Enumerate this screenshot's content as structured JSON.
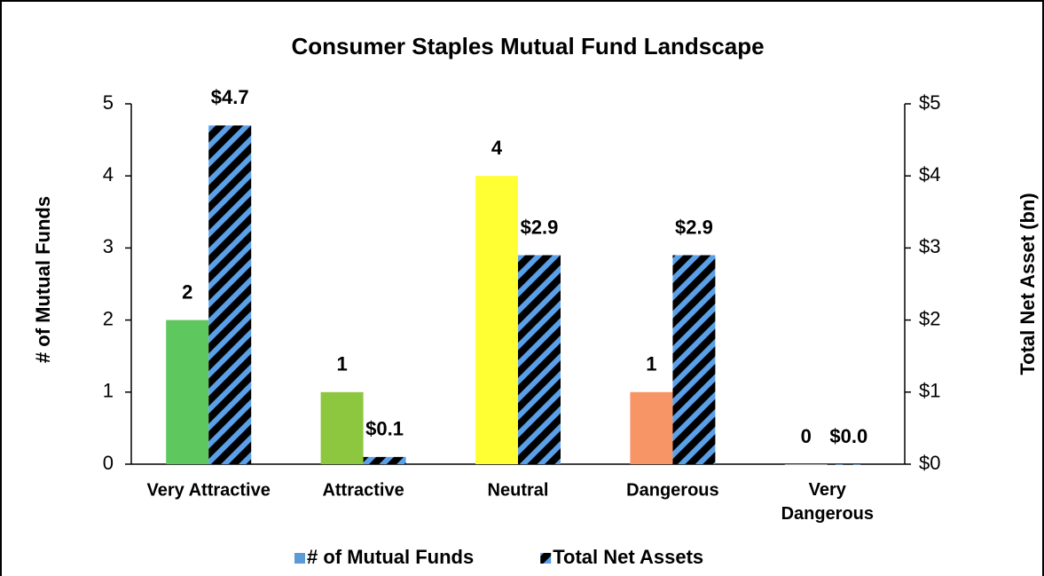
{
  "chart_data": {
    "type": "bar",
    "title": "Consumer Staples Mutual Fund Landscape",
    "categories": [
      "Very Attractive",
      "Attractive",
      "Neutral",
      "Dangerous",
      "Very Dangerous"
    ],
    "series": [
      {
        "name": "# of Mutual Funds",
        "color": "#5b9bd5",
        "colors": [
          "#5ec85e",
          "#8dc63f",
          "#ffff33",
          "#f79566",
          "#d9d9d9"
        ],
        "values": [
          2,
          1,
          4,
          1,
          0
        ]
      },
      {
        "name": "Total Net Assets",
        "color": "#5aa0e8",
        "axis": "y2",
        "values": [
          4.7,
          0.1,
          2.9,
          2.9,
          0.0
        ],
        "value_labels": [
          "$4.7",
          "$0.1",
          "$2.9",
          "$2.9",
          "$0.0"
        ]
      }
    ],
    "ylabel": "# of Mutual Funds",
    "y2label": "Total Net Asset (bn)",
    "ylim": [
      0,
      5
    ],
    "yticks": [
      0,
      1,
      2,
      3,
      4,
      5
    ],
    "y2lim": [
      0,
      5
    ],
    "y2ticks": [
      {
        "value": 0,
        "label": "$0"
      },
      {
        "value": 1,
        "label": "$1"
      },
      {
        "value": 2,
        "label": "$2"
      },
      {
        "value": 3,
        "label": "$3"
      },
      {
        "value": 4,
        "label": "$4"
      },
      {
        "value": 5,
        "label": "$5"
      }
    ],
    "legend": "bottom"
  }
}
